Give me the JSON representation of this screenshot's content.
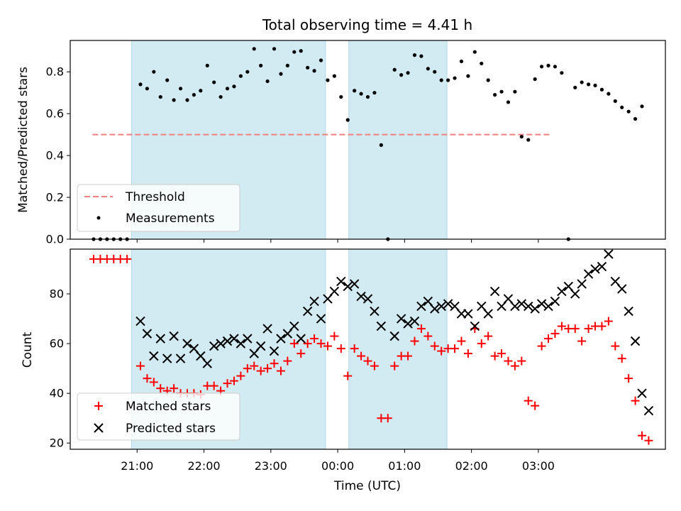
{
  "chart_data": [
    {
      "type": "scatter",
      "title": "Total observing time = 4.41 h",
      "ylabel": "Matched/Predicted stars",
      "xlabel": "",
      "ylim": [
        0,
        0.95
      ],
      "yticks": [
        "0.0",
        "0.2",
        "0.4",
        "0.6",
        "0.8"
      ],
      "shaded_intervals": [
        [
          "20:55",
          "23:49"
        ],
        [
          "00:10",
          "01:38"
        ]
      ],
      "threshold": {
        "name": "Threshold",
        "value": 0.5,
        "x_range": [
          "20:20",
          "03:10"
        ],
        "color": "#f08080"
      },
      "series": [
        {
          "name": "Measurements",
          "color": "#000000",
          "points": [
            [
              "20:21",
              0.0
            ],
            [
              "20:27",
              0.0
            ],
            [
              "20:33",
              0.0
            ],
            [
              "20:39",
              0.0
            ],
            [
              "20:45",
              0.0
            ],
            [
              "20:51",
              0.0
            ],
            [
              "21:03",
              0.74
            ],
            [
              "21:09",
              0.72
            ],
            [
              "21:15",
              0.8
            ],
            [
              "21:21",
              0.68
            ],
            [
              "21:27",
              0.76
            ],
            [
              "21:33",
              0.665
            ],
            [
              "21:39",
              0.72
            ],
            [
              "21:45",
              0.665
            ],
            [
              "21:51",
              0.69
            ],
            [
              "21:57",
              0.71
            ],
            [
              "22:03",
              0.83
            ],
            [
              "22:09",
              0.75
            ],
            [
              "22:15",
              0.68
            ],
            [
              "22:21",
              0.72
            ],
            [
              "22:27",
              0.73
            ],
            [
              "22:33",
              0.78
            ],
            [
              "22:39",
              0.8
            ],
            [
              "22:45",
              0.91
            ],
            [
              "22:51",
              0.83
            ],
            [
              "22:57",
              0.755
            ],
            [
              "23:03",
              0.91
            ],
            [
              "23:09",
              0.79
            ],
            [
              "23:15",
              0.83
            ],
            [
              "23:21",
              0.895
            ],
            [
              "23:27",
              0.9
            ],
            [
              "23:33",
              0.82
            ],
            [
              "23:39",
              0.805
            ],
            [
              "23:45",
              0.855
            ],
            [
              "23:51",
              0.76
            ],
            [
              "23:57",
              0.78
            ],
            [
              "00:03",
              0.68
            ],
            [
              "00:09",
              0.57
            ],
            [
              "00:15",
              0.71
            ],
            [
              "00:21",
              0.695
            ],
            [
              "00:27",
              0.68
            ],
            [
              "00:33",
              0.7
            ],
            [
              "00:39",
              0.45
            ],
            [
              "00:45",
              0.0
            ],
            [
              "00:51",
              0.81
            ],
            [
              "00:57",
              0.785
            ],
            [
              "01:03",
              0.795
            ],
            [
              "01:09",
              0.88
            ],
            [
              "01:15",
              0.875
            ],
            [
              "01:21",
              0.815
            ],
            [
              "01:27",
              0.8
            ],
            [
              "01:33",
              0.76
            ],
            [
              "01:39",
              0.76
            ],
            [
              "01:45",
              0.77
            ],
            [
              "01:51",
              0.85
            ],
            [
              "01:57",
              0.78
            ],
            [
              "02:03",
              0.895
            ],
            [
              "02:09",
              0.84
            ],
            [
              "02:15",
              0.76
            ],
            [
              "02:21",
              0.69
            ],
            [
              "02:27",
              0.705
            ],
            [
              "02:33",
              0.655
            ],
            [
              "02:39",
              0.705
            ],
            [
              "02:45",
              0.49
            ],
            [
              "02:51",
              0.475
            ],
            [
              "02:57",
              0.765
            ],
            [
              "03:03",
              0.825
            ],
            [
              "03:09",
              0.83
            ],
            [
              "03:15",
              0.825
            ],
            [
              "03:21",
              0.795
            ],
            [
              "03:27",
              0.0
            ],
            [
              "03:33",
              0.725
            ],
            [
              "03:39",
              0.75
            ],
            [
              "03:45",
              0.74
            ],
            [
              "03:51",
              0.735
            ],
            [
              "03:57",
              0.715
            ],
            [
              "04:03",
              0.695
            ],
            [
              "04:09",
              0.66
            ],
            [
              "04:15",
              0.63
            ],
            [
              "04:21",
              0.61
            ],
            [
              "04:27",
              0.575
            ],
            [
              "04:33",
              0.635
            ]
          ]
        }
      ],
      "legend": {
        "position": "lower-left",
        "entries": [
          "Threshold",
          "Measurements"
        ]
      }
    },
    {
      "type": "scatter",
      "ylabel": "Count",
      "xlabel": "Time (UTC)",
      "ylim": [
        17.5,
        98
      ],
      "yticks": [
        "20",
        "40",
        "60",
        "80"
      ],
      "xticks": [
        "21:00",
        "22:00",
        "23:00",
        "00:00",
        "01:00",
        "02:00",
        "03:00"
      ],
      "xtick_values": [
        "21:00",
        "22:00",
        "23:00",
        "24:00",
        "25:00",
        "26:00",
        "27:00"
      ],
      "shaded_intervals": [
        [
          "20:55",
          "23:49"
        ],
        [
          "00:10",
          "01:38"
        ]
      ],
      "series": [
        {
          "name": "Matched stars",
          "marker": "plus",
          "color": "#ff0000",
          "points": [
            [
              "20:21",
              94
            ],
            [
              "20:27",
              94
            ],
            [
              "20:33",
              94
            ],
            [
              "20:39",
              94
            ],
            [
              "20:45",
              94
            ],
            [
              "20:51",
              94
            ],
            [
              "21:03",
              51
            ],
            [
              "21:09",
              46
            ],
            [
              "21:15",
              44.5
            ],
            [
              "21:21",
              42
            ],
            [
              "21:27",
              41
            ],
            [
              "21:33",
              42
            ],
            [
              "21:39",
              40
            ],
            [
              "21:45",
              40
            ],
            [
              "21:51",
              40
            ],
            [
              "21:57",
              39.5
            ],
            [
              "22:03",
              43
            ],
            [
              "22:09",
              43
            ],
            [
              "22:15",
              41
            ],
            [
              "22:21",
              44
            ],
            [
              "22:27",
              45
            ],
            [
              "22:33",
              47
            ],
            [
              "22:39",
              50
            ],
            [
              "22:45",
              51
            ],
            [
              "22:51",
              49
            ],
            [
              "22:57",
              50
            ],
            [
              "23:03",
              52
            ],
            [
              "23:09",
              49
            ],
            [
              "23:15",
              53
            ],
            [
              "23:21",
              60
            ],
            [
              "23:27",
              56
            ],
            [
              "23:33",
              60
            ],
            [
              "23:39",
              62
            ],
            [
              "23:45",
              60
            ],
            [
              "23:51",
              59
            ],
            [
              "23:57",
              63
            ],
            [
              "24:03",
              58
            ],
            [
              "24:09",
              47
            ],
            [
              "24:15",
              58
            ],
            [
              "24:21",
              55
            ],
            [
              "24:27",
              53
            ],
            [
              "24:33",
              51
            ],
            [
              "24:39",
              30
            ],
            [
              "24:45",
              30
            ],
            [
              "24:51",
              51
            ],
            [
              "24:57",
              55
            ],
            [
              "25:03",
              55
            ],
            [
              "25:09",
              61
            ],
            [
              "25:15",
              66
            ],
            [
              "25:21",
              63
            ],
            [
              "25:27",
              59
            ],
            [
              "25:33",
              57
            ],
            [
              "25:39",
              58
            ],
            [
              "25:45",
              58
            ],
            [
              "25:51",
              61
            ],
            [
              "25:57",
              56
            ],
            [
              "26:03",
              66
            ],
            [
              "26:09",
              60
            ],
            [
              "26:15",
              63
            ],
            [
              "26:21",
              55
            ],
            [
              "26:27",
              56
            ],
            [
              "26:33",
              53
            ],
            [
              "26:39",
              51
            ],
            [
              "26:45",
              53
            ],
            [
              "26:51",
              37
            ],
            [
              "26:57",
              35
            ],
            [
              "27:03",
              59
            ],
            [
              "27:09",
              62
            ],
            [
              "27:15",
              64
            ],
            [
              "27:21",
              67
            ],
            [
              "27:27",
              66
            ],
            [
              "27:33",
              66
            ],
            [
              "27:39",
              61
            ],
            [
              "27:45",
              66
            ],
            [
              "27:51",
              67
            ],
            [
              "27:57",
              67
            ],
            [
              "28:03",
              69
            ],
            [
              "28:09",
              59
            ],
            [
              "28:15",
              54
            ],
            [
              "28:21",
              46
            ],
            [
              "28:27",
              37
            ],
            [
              "28:33",
              23
            ],
            [
              "28:39",
              21
            ]
          ]
        },
        {
          "name": "Predicted stars",
          "marker": "x",
          "color": "#000000",
          "points": [
            [
              "21:03",
              69
            ],
            [
              "21:09",
              64
            ],
            [
              "21:15",
              55
            ],
            [
              "21:21",
              62
            ],
            [
              "21:27",
              54
            ],
            [
              "21:33",
              63
            ],
            [
              "21:39",
              54
            ],
            [
              "21:45",
              60
            ],
            [
              "21:51",
              58
            ],
            [
              "21:57",
              55
            ],
            [
              "22:03",
              52
            ],
            [
              "22:09",
              59
            ],
            [
              "22:15",
              60
            ],
            [
              "22:21",
              61
            ],
            [
              "22:27",
              62
            ],
            [
              "22:33",
              60
            ],
            [
              "22:39",
              62
            ],
            [
              "22:45",
              56
            ],
            [
              "22:51",
              59
            ],
            [
              "22:57",
              66
            ],
            [
              "23:03",
              57
            ],
            [
              "23:09",
              62
            ],
            [
              "23:15",
              64
            ],
            [
              "23:21",
              67
            ],
            [
              "23:27",
              62
            ],
            [
              "23:33",
              73
            ],
            [
              "23:39",
              77
            ],
            [
              "23:45",
              70
            ],
            [
              "23:51",
              78
            ],
            [
              "23:57",
              81
            ],
            [
              "24:03",
              85
            ],
            [
              "24:09",
              83
            ],
            [
              "24:15",
              84
            ],
            [
              "24:21",
              79
            ],
            [
              "24:27",
              78
            ],
            [
              "24:33",
              73
            ],
            [
              "24:39",
              67
            ],
            [
              "24:51",
              63
            ],
            [
              "24:57",
              70
            ],
            [
              "25:03",
              68
            ],
            [
              "25:09",
              69
            ],
            [
              "25:15",
              75
            ],
            [
              "25:21",
              77
            ],
            [
              "25:27",
              74
            ],
            [
              "25:33",
              75
            ],
            [
              "25:39",
              76
            ],
            [
              "25:45",
              75
            ],
            [
              "25:51",
              72
            ],
            [
              "25:57",
              72
            ],
            [
              "26:03",
              67
            ],
            [
              "26:09",
              75
            ],
            [
              "26:15",
              72
            ],
            [
              "26:21",
              81
            ],
            [
              "26:27",
              75
            ],
            [
              "26:33",
              78
            ],
            [
              "26:39",
              75
            ],
            [
              "26:45",
              76
            ],
            [
              "26:51",
              75
            ],
            [
              "26:57",
              74
            ],
            [
              "27:03",
              76
            ],
            [
              "27:09",
              75
            ],
            [
              "27:15",
              77
            ],
            [
              "27:21",
              81
            ],
            [
              "27:27",
              83
            ],
            [
              "27:33",
              80
            ],
            [
              "27:39",
              84
            ],
            [
              "27:45",
              88
            ],
            [
              "27:51",
              90
            ],
            [
              "27:57",
              91
            ],
            [
              "28:03",
              96
            ],
            [
              "28:09",
              85
            ],
            [
              "28:15",
              82
            ],
            [
              "28:21",
              73
            ],
            [
              "28:27",
              61
            ],
            [
              "28:33",
              40
            ],
            [
              "28:39",
              33
            ]
          ]
        }
      ],
      "legend": {
        "position": "lower-left",
        "entries": [
          "Matched stars",
          "Predicted stars"
        ]
      }
    }
  ],
  "colors": {
    "shade": "#add8e6",
    "threshold": "#f08080",
    "matched": "#ff0000",
    "predicted": "#000000",
    "measurements": "#000000"
  }
}
